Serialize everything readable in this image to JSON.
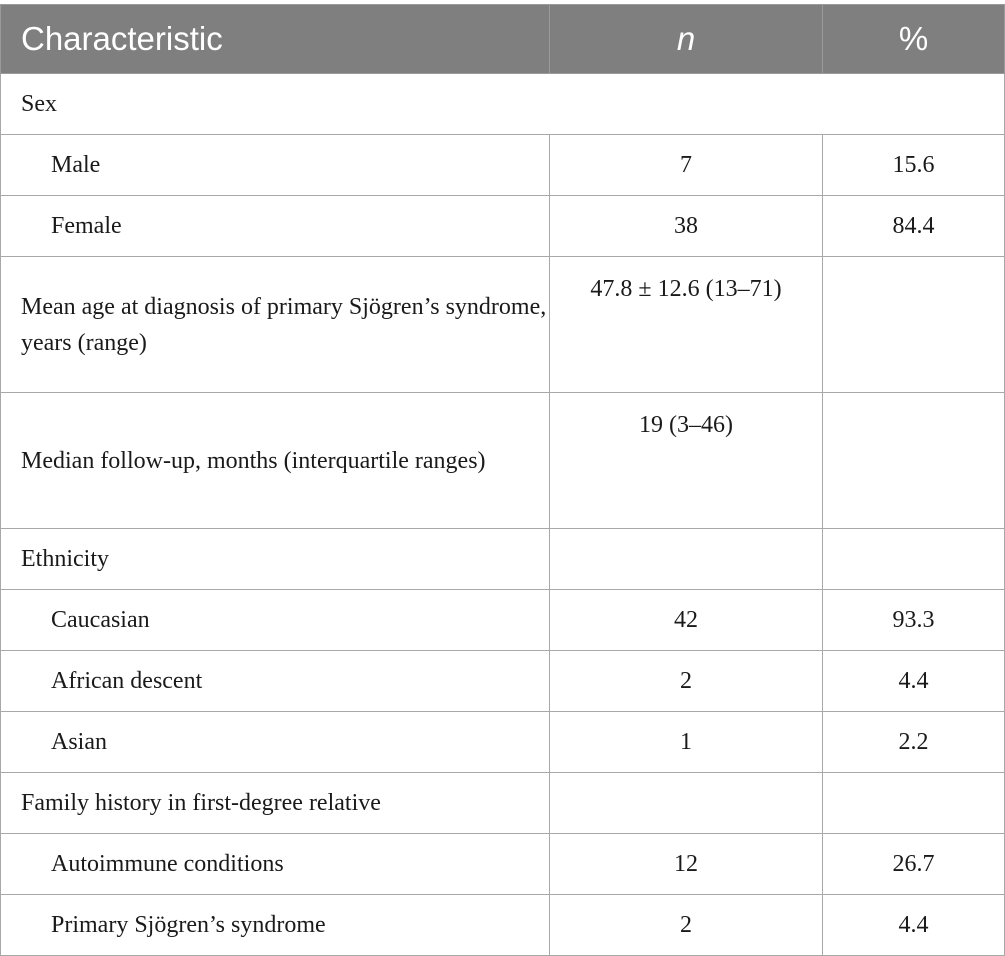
{
  "table": {
    "headers": {
      "characteristic": "Characteristic",
      "n": "n",
      "percent": "%"
    },
    "rows": [
      {
        "label": "Sex",
        "n": "",
        "pct": ""
      },
      {
        "label": "Male",
        "n": "7",
        "pct": "15.6"
      },
      {
        "label": "Female",
        "n": "38",
        "pct": "84.4"
      },
      {
        "label": "Mean age at diagnosis of primary Sjögren’s syndrome, years (range)",
        "n": "47.8 ± 12.6 (13–71)",
        "pct": ""
      },
      {
        "label": "Median follow-up, months (interquartile ranges)",
        "n": "19 (3–46)",
        "pct": ""
      },
      {
        "label": "Ethnicity",
        "n": "",
        "pct": ""
      },
      {
        "label": "Caucasian",
        "n": "42",
        "pct": "93.3"
      },
      {
        "label": "African descent",
        "n": "2",
        "pct": "4.4"
      },
      {
        "label": "Asian",
        "n": "1",
        "pct": "2.2"
      },
      {
        "label": "Family history in first-degree relative",
        "n": "",
        "pct": ""
      },
      {
        "label": "Autoimmune conditions",
        "n": "12",
        "pct": "26.7"
      },
      {
        "label": "Primary Sjögren’s syndrome",
        "n": "2",
        "pct": "4.4"
      }
    ]
  }
}
